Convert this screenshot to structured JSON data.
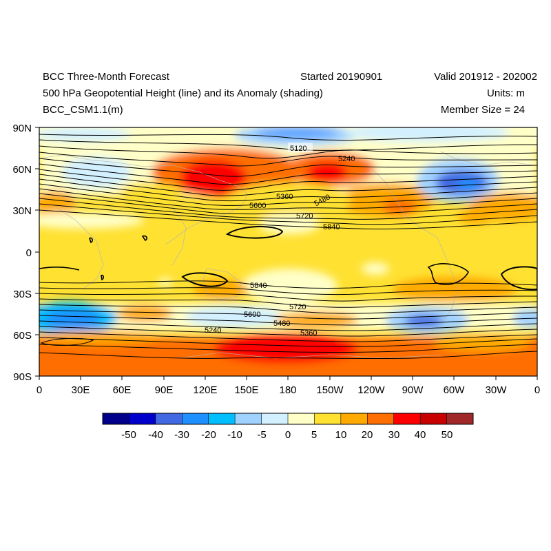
{
  "header": {
    "title": "BCC Three-Month Forecast",
    "started": "Started 20190901",
    "valid": "Valid 201912 - 202002",
    "subtitle": "500 hPa Geopotential Height (line) and its Anomaly (shading)",
    "units": "Units: m",
    "model": "BCC_CSM1.1(m)",
    "members": "Member Size = 24"
  },
  "axes": {
    "lon_ticks": [
      "0",
      "30E",
      "60E",
      "90E",
      "120E",
      "150E",
      "180",
      "150W",
      "120W",
      "90W",
      "60W",
      "30W",
      "0"
    ],
    "lat_ticks": [
      "90N",
      "60N",
      "30N",
      "0",
      "30S",
      "60S",
      "90S"
    ]
  },
  "contour_labels": [
    "5120",
    "5240",
    "5360",
    "5480",
    "5600",
    "5720",
    "5840",
    "5840",
    "5720",
    "5600",
    "5480",
    "5360",
    "5240"
  ],
  "colorbar": {
    "levels": [
      "-50",
      "-40",
      "-30",
      "-20",
      "-10",
      "-5",
      "0",
      "5",
      "10",
      "20",
      "30",
      "40",
      "50"
    ],
    "colors": [
      "#00008b",
      "#0000cd",
      "#4169e1",
      "#1e90ff",
      "#00bfff",
      "#a0d2ff",
      "#d2f0ff",
      "#ffffc8",
      "#ffe132",
      "#ffaa00",
      "#ff6e00",
      "#ff0000",
      "#c80000",
      "#a02828"
    ]
  }
}
